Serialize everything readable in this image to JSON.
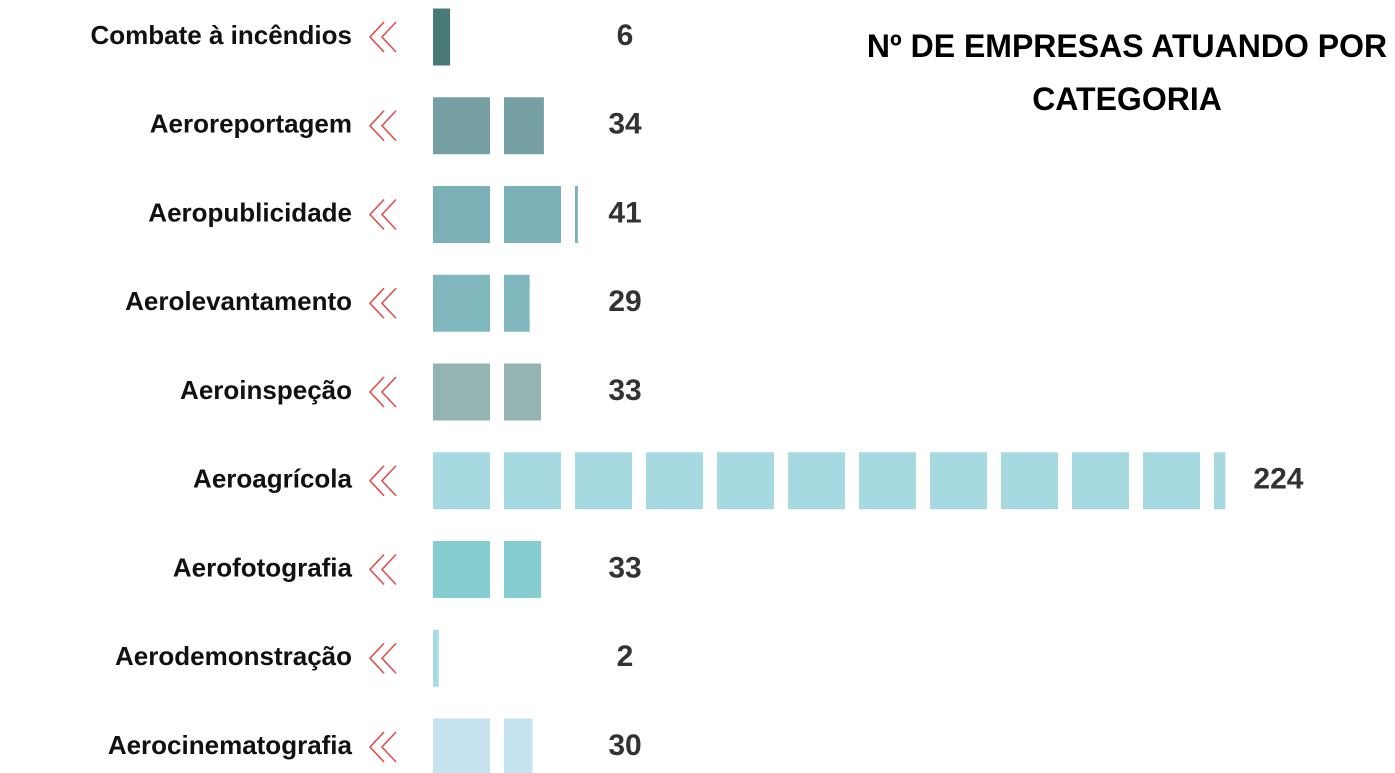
{
  "chart_data": {
    "type": "bar",
    "orientation": "horizontal",
    "title": "Nº DE EMPRESAS ATUANDO POR CATEGORIA",
    "categories": [
      "Combate à incêndios",
      "Aeroreportagem",
      "Aeropublicidade",
      "Aerolevantamento",
      "Aeroinspeção",
      "Aeroagrícola",
      "Aerofotografia",
      "Aerodemonstração",
      "Aerocinematografia"
    ],
    "values": [
      6,
      34,
      41,
      29,
      33,
      224,
      33,
      2,
      30
    ],
    "colors": [
      "#4a7a76",
      "#76a0a4",
      "#7ab0b6",
      "#80b8bd",
      "#94b4b2",
      "#a6dae0",
      "#86cdd2",
      "#a6dbe8",
      "#c5e2ee"
    ]
  }
}
